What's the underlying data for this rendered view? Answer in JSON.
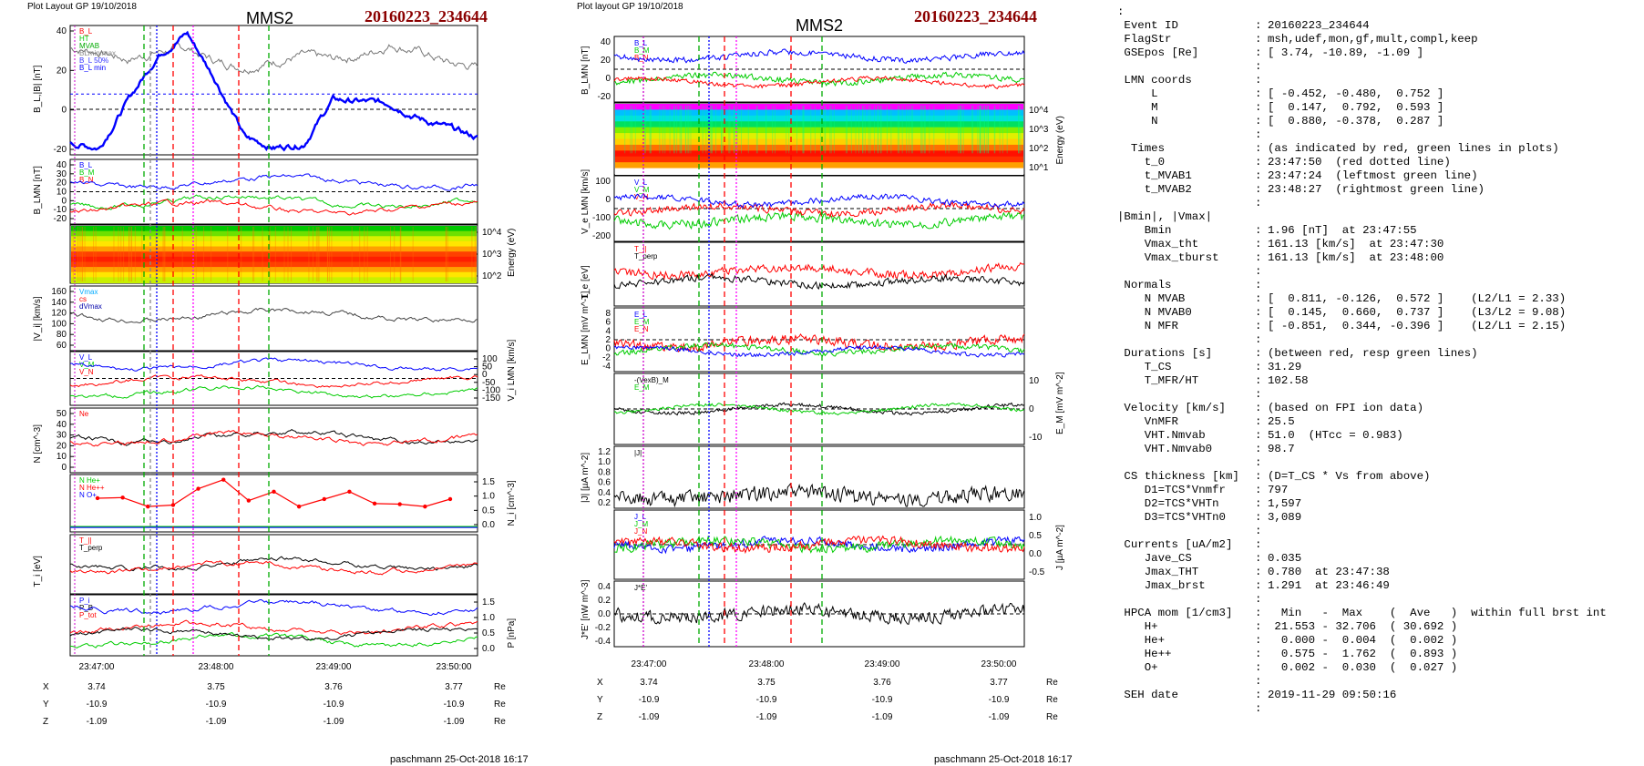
{
  "left": {
    "header": "Plot Layout GP 19/10/2018",
    "title": "MMS2",
    "event": "20160223_234644",
    "footer": "paschmann 25-Oct-2018 16:17",
    "panels": [
      {
        "id": "B",
        "ylabel": "B_L,|B| [nT]",
        "yticks_left": [
          "40",
          "20",
          "0",
          "-20"
        ],
        "yticks_right": [],
        "legend": [
          "B_L",
          "HT",
          "MVAB",
          "BLmin/max",
          "B_L 50%",
          "B_L min"
        ],
        "colors": [
          "#ff0000",
          "#00cc00",
          "#00aa00",
          "#888888",
          "#3333ff",
          "#0000ff"
        ]
      },
      {
        "id": "BLMN",
        "ylabel": "B_LMN [nT]",
        "yticks_left": [
          "40",
          "30",
          "20",
          "10",
          "0",
          "-10",
          "-20"
        ],
        "yticks_right": [],
        "legend": [
          "B_L",
          "B_M",
          "B_N"
        ],
        "colors": [
          "#0000ff",
          "#00cc00",
          "#ff0000"
        ]
      },
      {
        "id": "spec",
        "ylabel": "Energy (eV)",
        "yticks_left": [],
        "yticks_right": [
          "10^4",
          "10^3",
          "10^2"
        ],
        "legend": [],
        "colors": []
      },
      {
        "id": "Vi",
        "ylabel": "|V_i| [km/s]",
        "yticks_left": [
          "160",
          "140",
          "120",
          "100",
          "80",
          "60"
        ],
        "yticks_right": [],
        "legend": [
          "Vmax",
          "cs",
          "dVmax"
        ],
        "colors": [
          "#00aaff",
          "#ff0000",
          "#0000aa"
        ]
      },
      {
        "id": "ViLMN",
        "ylabel": "V_i LMN [km/s]",
        "yticks_left": [],
        "yticks_right": [
          "100",
          "50",
          "0",
          "-50",
          "-100",
          "-150"
        ],
        "legend": [
          "V_L",
          "V_M",
          "V_N"
        ],
        "colors": [
          "#0000ff",
          "#00cc00",
          "#ff0000"
        ]
      },
      {
        "id": "N",
        "ylabel": "N [cm^-3]",
        "yticks_left": [
          "50",
          "40",
          "30",
          "20",
          "10",
          "0"
        ],
        "yticks_right": [],
        "legend": [
          "Ne"
        ],
        "colors": [
          "#ff0000"
        ]
      },
      {
        "id": "Ni",
        "ylabel": "N_i [cm^-3]",
        "yticks_left": [],
        "yticks_right": [
          "1.5",
          "1.0",
          "0.5",
          "0.0"
        ],
        "legend": [
          "N He+",
          "N He++",
          "N O+"
        ],
        "colors": [
          "#00cc00",
          "#ff0000",
          "#0000ff"
        ]
      },
      {
        "id": "Ti",
        "ylabel": "T_i [eV]",
        "yticks_left": [],
        "yticks_right": [],
        "legend": [
          "T_||",
          "T_perp"
        ],
        "colors": [
          "#ff0000",
          "#000000"
        ]
      },
      {
        "id": "P",
        "ylabel": "P [nPa]",
        "yticks_left": [],
        "yticks_right": [
          "1.5",
          "1.0",
          "0.5",
          "0.0"
        ],
        "legend": [
          "P_i",
          "P_B",
          "P_tot"
        ],
        "colors": [
          "#0000ff",
          "#000000",
          "#ff0000"
        ]
      }
    ],
    "xticks": [
      "23:47:00",
      "23:48:00",
      "23:49:00",
      "23:50:00"
    ],
    "pos_table": [
      {
        "label": "X",
        "values": [
          "3.74",
          "3.75",
          "3.76",
          "3.77"
        ],
        "unit": "Re"
      },
      {
        "label": "Y",
        "values": [
          "-10.9",
          "-10.9",
          "-10.9",
          "-10.9"
        ],
        "unit": "Re"
      },
      {
        "label": "Z",
        "values": [
          "-1.09",
          "-1.09",
          "-1.09",
          "-1.09"
        ],
        "unit": "Re"
      }
    ]
  },
  "middle": {
    "header": "Plot layout GP 19/10/2018",
    "title": "MMS2",
    "event": "20160223_234644",
    "footer": "paschmann 25-Oct-2018 16:17",
    "panels": [
      {
        "id": "BLMN",
        "ylabel": "B_LMN [nT]",
        "yticks_left": [
          "40",
          "20",
          "0",
          "-20"
        ],
        "yticks_right": [],
        "legend": [
          "B_L",
          "B_M",
          "B_N"
        ],
        "colors": [
          "#0000ff",
          "#00cc00",
          "#ff0000"
        ]
      },
      {
        "id": "espec",
        "ylabel": "Energy (eV)",
        "yticks_left": [],
        "yticks_right": [
          "10^4",
          "10^3",
          "10^2",
          "10^1"
        ],
        "legend": [],
        "colors": []
      },
      {
        "id": "Ve",
        "ylabel": "V_e LMN [km/s]",
        "yticks_left": [
          "100",
          "0",
          "-100",
          "-200"
        ],
        "yticks_right": [],
        "legend": [
          "V_L",
          "V_M",
          "V_N"
        ],
        "colors": [
          "#0000ff",
          "#00cc00",
          "#ff0000"
        ]
      },
      {
        "id": "Te",
        "ylabel": "T_e [eV]",
        "yticks_left": [],
        "yticks_right": [],
        "legend": [
          "T_||",
          "T_perp"
        ],
        "colors": [
          "#ff0000",
          "#000000"
        ]
      },
      {
        "id": "E",
        "ylabel": "E_LMN [mV m^-1]",
        "yticks_left": [
          "8",
          "6",
          "4",
          "2",
          "0",
          "-2",
          "-4"
        ],
        "yticks_right": [],
        "legend": [
          "E_L",
          "E_M",
          "E_N"
        ],
        "colors": [
          "#0000ff",
          "#00cc00",
          "#ff0000"
        ]
      },
      {
        "id": "EM",
        "ylabel": "E_M [mV m^-2]",
        "yticks_left": [],
        "yticks_right": [
          "10",
          "0",
          "-10"
        ],
        "legend": [
          "-(VexB)_M",
          "E_M"
        ],
        "colors": [
          "#000000",
          "#00cc00"
        ]
      },
      {
        "id": "Jmag",
        "ylabel": "|J| [µA m^-2]",
        "yticks_left": [
          "1.2",
          "1.0",
          "0.8",
          "0.6",
          "0.4",
          "0.2"
        ],
        "yticks_right": [],
        "legend": [
          "|J|"
        ],
        "colors": [
          "#000000"
        ]
      },
      {
        "id": "J",
        "ylabel": "J [µA m^-2]",
        "yticks_left": [],
        "yticks_right": [
          "1.0",
          "0.5",
          "0.0",
          "-0.5"
        ],
        "legend": [
          "J_L",
          "J_M",
          "J_N"
        ],
        "colors": [
          "#0000ff",
          "#00cc00",
          "#ff0000"
        ]
      },
      {
        "id": "JE",
        "ylabel": "J*E' [nW m^-3]",
        "yticks_left": [
          "0.4",
          "0.2",
          "0.0",
          "-0.2",
          "-0.4"
        ],
        "yticks_right": [],
        "legend": [
          "J*E'"
        ],
        "colors": [
          "#000000"
        ]
      }
    ],
    "xticks": [
      "23:47:00",
      "23:48:00",
      "23:49:00",
      "23:50:00"
    ],
    "pos_table": [
      {
        "label": "X",
        "values": [
          "3.74",
          "3.75",
          "3.76",
          "3.77"
        ],
        "unit": "Re"
      },
      {
        "label": "Y",
        "values": [
          "-10.9",
          "-10.9",
          "-10.9",
          "-10.9"
        ],
        "unit": "Re"
      },
      {
        "label": "Z",
        "values": [
          "-1.09",
          "-1.09",
          "-1.09",
          "-1.09"
        ],
        "unit": "Re"
      }
    ]
  },
  "info": {
    "lines": [
      {
        "k": ":",
        "c": "",
        "v": ""
      },
      {
        "k": " Event ID",
        "c": ":",
        "v": "20160223_234644"
      },
      {
        "k": " FlagStr",
        "c": ":",
        "v": "msh,udef,mon,gf,mult,compl,keep"
      },
      {
        "k": " GSEpos [Re]",
        "c": ":",
        "v": "[ 3.74, -10.89, -1.09 ]"
      },
      {
        "k": "",
        "c": ":",
        "v": ""
      },
      {
        "k": " LMN coords",
        "c": ":",
        "v": ""
      },
      {
        "k": "     L",
        "c": ":",
        "v": "[ -0.452, -0.480,  0.752 ]"
      },
      {
        "k": "     M",
        "c": ":",
        "v": "[  0.147,  0.792,  0.593 ]"
      },
      {
        "k": "     N",
        "c": ":",
        "v": "[  0.880, -0.378,  0.287 ]"
      },
      {
        "k": "",
        "c": ":",
        "v": ""
      },
      {
        "k": "  Times",
        "c": ":",
        "v": "(as indicated by red, green lines in plots)"
      },
      {
        "k": "    t_0",
        "c": ":",
        "v": "23:47:50  (red dotted line)"
      },
      {
        "k": "    t_MVAB1",
        "c": ":",
        "v": "23:47:24  (leftmost green line)"
      },
      {
        "k": "    t_MVAB2",
        "c": ":",
        "v": "23:48:27  (rightmost green line)"
      },
      {
        "k": "",
        "c": ":",
        "v": ""
      },
      {
        "k": "|Bmin|, |Vmax|",
        "c": "",
        "v": ""
      },
      {
        "k": "    Bmin",
        "c": ":",
        "v": "1.96 [nT]  at 23:47:55"
      },
      {
        "k": "    Vmax_tht",
        "c": ":",
        "v": "161.13 [km/s]  at 23:47:30"
      },
      {
        "k": "    Vmax_tburst",
        "c": ":",
        "v": "161.13 [km/s]  at 23:48:00"
      },
      {
        "k": "",
        "c": ":",
        "v": ""
      },
      {
        "k": " Normals",
        "c": ":",
        "v": ""
      },
      {
        "k": "    N MVAB",
        "c": ":",
        "v": "[  0.811, -0.126,  0.572 ]    (L2/L1 = 2.33)"
      },
      {
        "k": "    N MVAB0",
        "c": ":",
        "v": "[  0.145,  0.660,  0.737 ]    (L3/L2 = 9.08)"
      },
      {
        "k": "    N MFR",
        "c": ":",
        "v": "[ -0.851,  0.344, -0.396 ]    (L2/L1 = 2.15)"
      },
      {
        "k": "",
        "c": ":",
        "v": ""
      },
      {
        "k": " Durations [s]",
        "c": ":",
        "v": "(between red, resp green lines)"
      },
      {
        "k": "    T_CS",
        "c": ":",
        "v": "31.29"
      },
      {
        "k": "    T_MFR/HT",
        "c": ":",
        "v": "102.58"
      },
      {
        "k": "",
        "c": ":",
        "v": ""
      },
      {
        "k": " Velocity [km/s]",
        "c": ":",
        "v": "(based on FPI ion data)"
      },
      {
        "k": "    VnMFR",
        "c": ":",
        "v": "25.5"
      },
      {
        "k": "    VHT.Nmvab",
        "c": ":",
        "v": "51.0  (HTcc = 0.983)"
      },
      {
        "k": "    VHT.Nmvab0",
        "c": ":",
        "v": "98.7"
      },
      {
        "k": "",
        "c": ":",
        "v": ""
      },
      {
        "k": " CS thickness [km]",
        "c": ":",
        "v": "(D=T_CS * Vs from above)"
      },
      {
        "k": "    D1=TCS*Vnmfr",
        "c": ":",
        "v": "797"
      },
      {
        "k": "    D2=TCS*VHTn",
        "c": ":",
        "v": "1,597"
      },
      {
        "k": "    D3=TCS*VHTn0",
        "c": ":",
        "v": "3,089"
      },
      {
        "k": "",
        "c": ":",
        "v": ""
      },
      {
        "k": " Currents [uA/m2]",
        "c": ":",
        "v": ""
      },
      {
        "k": "    Jave_CS",
        "c": ":",
        "v": "0.035"
      },
      {
        "k": "    Jmax_THT",
        "c": ":",
        "v": "0.780  at 23:47:38"
      },
      {
        "k": "    Jmax_brst",
        "c": ":",
        "v": "1.291  at 23:46:49"
      },
      {
        "k": "",
        "c": ":",
        "v": ""
      },
      {
        "k": " HPCA mom [1/cm3]",
        "c": ":",
        "v": "  Min   -  Max    (  Ave   )  within full brst int"
      },
      {
        "k": "    H+",
        "c": ":",
        "v": " 21.553 - 32.706  ( 30.692 )"
      },
      {
        "k": "    He+",
        "c": ":",
        "v": "  0.000 -  0.004  (  0.002 )"
      },
      {
        "k": "    He++",
        "c": ":",
        "v": "  0.575 -  1.762  (  0.893 )"
      },
      {
        "k": "    O+",
        "c": ":",
        "v": "  0.002 -  0.030  (  0.027 )"
      },
      {
        "k": "",
        "c": ":",
        "v": ""
      },
      {
        "k": " SEH date",
        "c": ":",
        "v": "2019-11-29 09:50:16"
      },
      {
        "k": "",
        "c": ":",
        "v": ""
      }
    ]
  },
  "chart_data": [
    {
      "type": "line",
      "title": "MMS2 20160223_234644",
      "x_ticks": [
        "23:47:00",
        "23:48:00",
        "23:49:00",
        "23:50:00"
      ],
      "x": [
        "23:46:49",
        "23:47:00",
        "23:47:15",
        "23:47:30",
        "23:47:45",
        "23:48:00",
        "23:48:15",
        "23:48:30",
        "23:48:45",
        "23:49:00",
        "23:49:15",
        "23:49:30",
        "23:49:45",
        "23:50:00",
        "23:50:10"
      ],
      "series": [
        {
          "name": "B_L",
          "panel": "B",
          "values": [
            -18,
            -20,
            5,
            28,
            40,
            15,
            -15,
            -20,
            -18,
            5,
            4,
            3,
            -5,
            -10,
            -15
          ]
        },
        {
          "name": "|B|",
          "panel": "B",
          "values": [
            32,
            30,
            26,
            30,
            32,
            25,
            22,
            25,
            28,
            26,
            28,
            34,
            30,
            24,
            22
          ]
        },
        {
          "name": "Ni He++",
          "panel": "Ni",
          "values": [
            0.98,
            1.0,
            0.7,
            0.75,
            1.3,
            1.6,
            0.9,
            1.2,
            0.7,
            0.95,
            1.2,
            0.8,
            0.78,
            0.7,
            0.95
          ]
        }
      ]
    }
  ]
}
